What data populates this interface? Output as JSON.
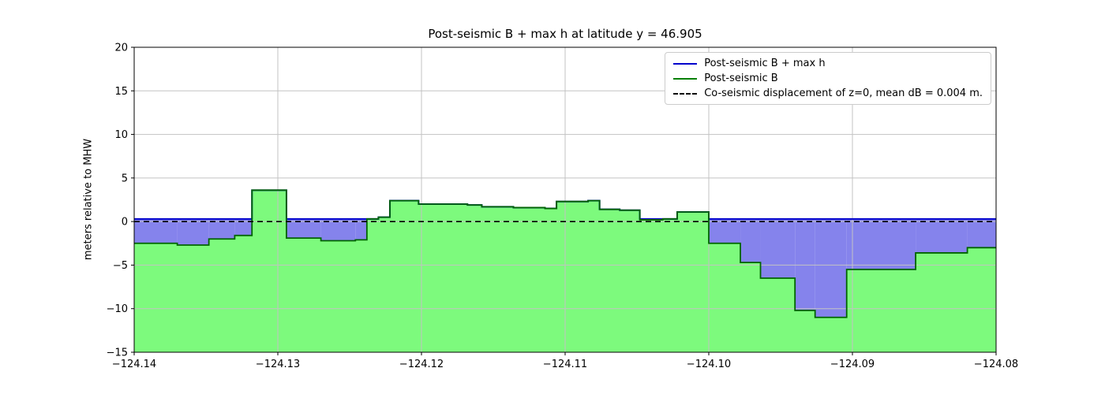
{
  "chart_data": {
    "type": "area",
    "title": "Post-seismic B + max h at latitude y = 46.905",
    "xlabel": "",
    "ylabel": "meters relative to MHW",
    "xlim": [
      -124.14,
      -124.08
    ],
    "ylim": [
      -15,
      20
    ],
    "xticks": {
      "values": [
        -124.14,
        -124.13,
        -124.12,
        -124.11,
        -124.1,
        -124.09,
        -124.08
      ],
      "labels": [
        "−124.14",
        "−124.13",
        "−124.12",
        "−124.11",
        "−124.10",
        "−124.09",
        "−124.08"
      ]
    },
    "yticks": {
      "values": [
        -15,
        -10,
        -5,
        0,
        5,
        10,
        15,
        20
      ],
      "labels": [
        "−15",
        "−10",
        "−5",
        "0",
        "5",
        "10",
        "15",
        "20"
      ]
    },
    "grid": true,
    "grid_color": "#c3c3c3",
    "legend_position": "upper right",
    "water_fill_color": "#8583ec",
    "step_edges_longitude": [
      -124.14,
      -124.137,
      -124.1348,
      -124.133,
      -124.1318,
      -124.1294,
      -124.127,
      -124.1246,
      -124.1238,
      -124.123,
      -124.1222,
      -124.1202,
      -124.1168,
      -124.1158,
      -124.1136,
      -124.1114,
      -124.1106,
      -124.1084,
      -124.1076,
      -124.1062,
      -124.1048,
      -124.1032,
      -124.1022,
      -124.1,
      -124.0978,
      -124.0964,
      -124.094,
      -124.0926,
      -124.0904,
      -124.0856,
      -124.082,
      -124.08
    ],
    "series": [
      {
        "name": "Post-seismic B + max h",
        "type": "step-line",
        "color": "#0000cc",
        "surface_level": 0.3
      },
      {
        "name": "Post-seismic B",
        "type": "step-area",
        "line_color": "#006400",
        "fill_color": "#7dfa7d",
        "values": [
          -2.5,
          -2.7,
          -2.0,
          -1.6,
          3.6,
          -1.9,
          -2.2,
          -2.1,
          0.3,
          0.5,
          2.4,
          2.0,
          1.9,
          1.7,
          1.6,
          1.5,
          2.3,
          2.4,
          1.4,
          1.3,
          0.2,
          0.3,
          1.1,
          -2.5,
          -4.7,
          -6.5,
          -10.2,
          -11.0,
          -5.5,
          -3.6,
          -3.0
        ]
      },
      {
        "name": "Co-seismic displacement of z=0, mean dB = 0.004 m.",
        "type": "hline",
        "y": 0,
        "color": "#000000",
        "linestyle": "dashed"
      }
    ]
  },
  "legend": {
    "items": [
      {
        "label": "Post-seismic B + max h",
        "color": "#0000cc",
        "dash": "solid"
      },
      {
        "label": "Post-seismic B",
        "color": "#008000",
        "dash": "solid"
      },
      {
        "label": "Co-seismic displacement of z=0, mean dB = 0.004 m.",
        "color": "#000000",
        "dash": "dashed"
      }
    ]
  }
}
